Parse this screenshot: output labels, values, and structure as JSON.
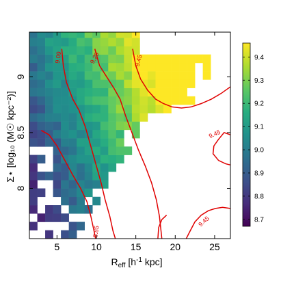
{
  "chart_data": {
    "type": "heatmap",
    "xlabel": {
      "main": "R",
      "sub": "eff",
      "rest": " [h",
      "sup": "-1",
      "end": " kpc]"
    },
    "ylabel": "Σ⋆ [log₁₀ (M☉ kpc⁻²)]",
    "xlim": [
      1.5,
      27
    ],
    "ylim": [
      7.55,
      9.4
    ],
    "xticks": [
      5,
      10,
      15,
      20,
      25
    ],
    "xtick_labels": [
      "5",
      "10",
      "15",
      "20",
      "25"
    ],
    "yticks": [
      8,
      8.5,
      9
    ],
    "ytick_labels": [
      "8",
      "8.5",
      "9"
    ],
    "colorbar": {
      "range": [
        8.67,
        9.46
      ],
      "ticks": [
        8.7,
        8.8,
        8.9,
        9.0,
        9.1,
        9.2,
        9.3,
        9.4
      ],
      "tick_labels": [
        "8.7",
        "8.8",
        "8.9",
        "9.0",
        "9.1",
        "9.2",
        "9.3",
        "9.4"
      ],
      "colormap": "viridis"
    },
    "bin_width_x": 1.0,
    "bin_width_y": 0.075,
    "contour_color": "#e00000",
    "contours": [
      {
        "level_label": "9.09",
        "points": [
          [
            5.6,
            9.25
          ],
          [
            5.8,
            9.1
          ],
          [
            6.2,
            8.95
          ],
          [
            7.0,
            8.8
          ],
          [
            7.8,
            8.7
          ],
          [
            8.6,
            8.55
          ],
          [
            9.4,
            8.35
          ],
          [
            10.0,
            8.2
          ],
          [
            10.6,
            8.05
          ],
          [
            11.1,
            7.9
          ],
          [
            11.7,
            7.75
          ],
          [
            12.1,
            7.62
          ],
          [
            12.4,
            7.55
          ]
        ]
      },
      {
        "level_label": "9.29",
        "points": [
          [
            9.8,
            9.25
          ],
          [
            10.4,
            9.1
          ],
          [
            11.3,
            9.0
          ],
          [
            12.2,
            8.9
          ],
          [
            13.0,
            8.8
          ],
          [
            13.7,
            8.65
          ],
          [
            14.5,
            8.5
          ],
          [
            15.3,
            8.35
          ],
          [
            16.2,
            8.2
          ],
          [
            17.0,
            8.05
          ],
          [
            17.6,
            7.9
          ],
          [
            18.0,
            7.75
          ],
          [
            18.2,
            7.62
          ],
          [
            18.3,
            7.55
          ]
        ]
      },
      {
        "level_label": "9.45",
        "points": [
          [
            14.6,
            9.25
          ],
          [
            15.0,
            9.1
          ],
          [
            15.6,
            8.98
          ],
          [
            16.5,
            8.88
          ],
          [
            17.5,
            8.8
          ],
          [
            18.5,
            8.76
          ],
          [
            19.6,
            8.73
          ],
          [
            20.8,
            8.72
          ],
          [
            22.0,
            8.73
          ],
          [
            23.3,
            8.76
          ],
          [
            24.6,
            8.8
          ],
          [
            25.8,
            8.85
          ],
          [
            27.0,
            8.91
          ]
        ]
      },
      {
        "level_label": "9.45",
        "points": [
          [
            27.0,
            8.48
          ],
          [
            26.2,
            8.5
          ],
          [
            25.5,
            8.44
          ],
          [
            24.9,
            8.38
          ],
          [
            24.8,
            8.31
          ],
          [
            25.5,
            8.25
          ],
          [
            26.4,
            8.22
          ],
          [
            27.0,
            8.21
          ]
        ]
      },
      {
        "level_label": "",
        "points": [
          [
            3.0,
            8.52
          ],
          [
            4.0,
            8.48
          ],
          [
            5.0,
            8.38
          ],
          [
            6.0,
            8.25
          ],
          [
            7.0,
            8.12
          ],
          [
            8.0,
            8.0
          ],
          [
            8.8,
            7.88
          ],
          [
            9.3,
            7.75
          ],
          [
            9.7,
            7.62
          ],
          [
            9.9,
            7.55
          ]
        ]
      },
      {
        "level_label": "9.45",
        "points": [
          [
            21.4,
            7.55
          ],
          [
            21.9,
            7.62
          ],
          [
            22.5,
            7.7
          ],
          [
            23.3,
            7.76
          ],
          [
            24.2,
            7.8
          ],
          [
            25.1,
            7.82
          ],
          [
            26.0,
            7.83
          ],
          [
            27.0,
            7.82
          ]
        ]
      },
      {
        "level_label": "",
        "points": [
          [
            17.8,
            7.55
          ],
          [
            17.9,
            7.65
          ],
          [
            18.3,
            7.72
          ],
          [
            18.9,
            7.76
          ]
        ]
      }
    ],
    "contour_labels": [
      {
        "text": "9.09",
        "x": 5.4,
        "y": 9.17,
        "angle": -82
      },
      {
        "text": "9.29",
        "x": 10.0,
        "y": 9.16,
        "angle": -62
      },
      {
        "text": "9.45",
        "x": 15.6,
        "y": 9.14,
        "angle": -76
      },
      {
        "text": "9.45",
        "x": 25.1,
        "y": 8.47,
        "angle": -24
      },
      {
        "text": "8.85",
        "x": 10.2,
        "y": 7.61,
        "angle": -82
      },
      {
        "text": "9.45",
        "x": 23.8,
        "y": 7.69,
        "angle": -42
      }
    ]
  }
}
